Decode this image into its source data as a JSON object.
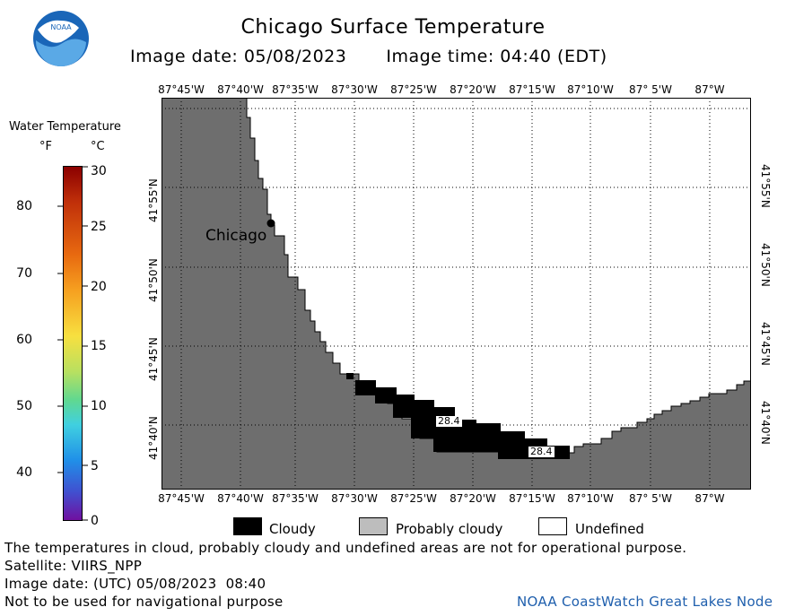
{
  "title": "Chicago Surface Temperature",
  "image_date": "Image date: 05/08/2023",
  "image_time": "Image time: 04:40 (EDT)",
  "logo_text": "NOAA",
  "legend": {
    "title": "Water Temperature",
    "unit_f": "°F",
    "unit_c": "°C",
    "ticks_f": [
      "80",
      "70",
      "60",
      "50",
      "40"
    ],
    "ticks_c": [
      "30",
      "25",
      "20",
      "15",
      "10",
      "5",
      "0"
    ]
  },
  "map": {
    "lon_labels": [
      "87°45'W",
      "87°40'W",
      "87°35'W",
      "87°30'W",
      "87°25'W",
      "87°20'W",
      "87°15'W",
      "87°10'W",
      "87° 5'W",
      "87°W"
    ],
    "lat_labels": [
      "41°55'N",
      "41°50'N",
      "41°45'N",
      "41°40'N"
    ],
    "city": "Chicago",
    "temp_labels": [
      "28.4",
      "28.4"
    ]
  },
  "key": {
    "cloudy": "Cloudy",
    "probably_cloudy": "Probably cloudy",
    "undefined": "Undefined"
  },
  "notes": {
    "disclaimer": "The temperatures in cloud, probably cloudy and undefined areas are not for operational purpose.",
    "satellite": "Satellite: VIIRS_NPP",
    "utc_date": "Image date: (UTC) 05/08/2023  08:40",
    "navigation": "Not to be used for navigational purpose",
    "node": "NOAA CoastWatch Great Lakes Node"
  },
  "colors": {
    "land": "#6e6e6e",
    "cloudy": "#000000",
    "probably_cloudy": "#bdbdbd",
    "undefined": "#ffffff",
    "node_text": "#1f5fad",
    "logo_blue": "#1a66b8"
  }
}
